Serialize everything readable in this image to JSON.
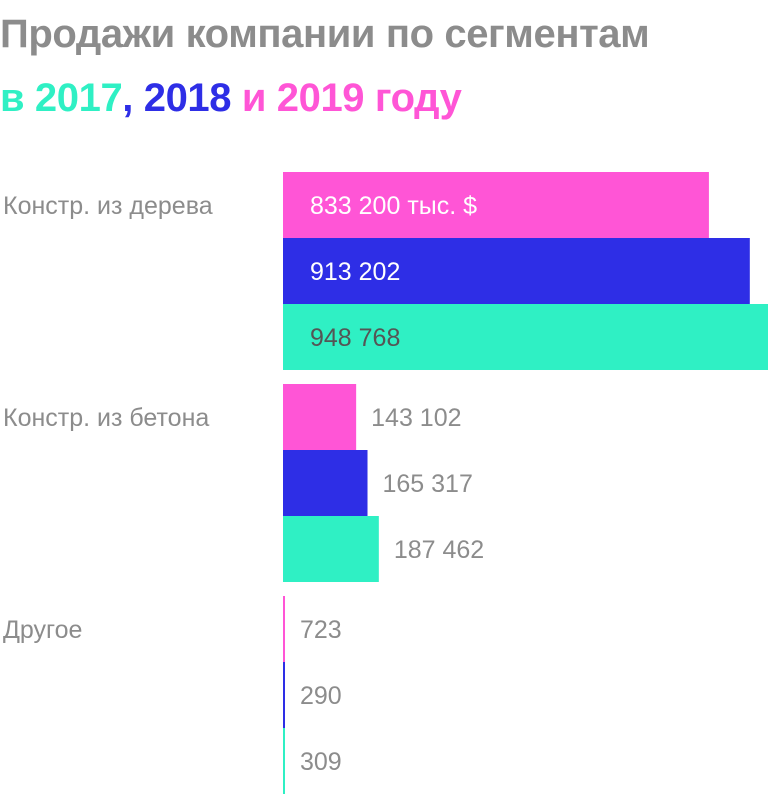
{
  "title": {
    "line1": "Продажи компании по сегментам",
    "prefix": "в ",
    "year_2017": "2017",
    "sep_1": ", ",
    "year_2018": "2018",
    "sep_2": " и ",
    "year_2019": "2019",
    "suffix": " году"
  },
  "colors": {
    "title_gray": "#8c8c8c",
    "year_2017": "#2ff0c4",
    "year_2018": "#2e2ee6",
    "year_2019": "#ff55d6",
    "label_gray": "#8c8c8c",
    "inside_label_light": "#ffffff",
    "inside_label_dark": "#555555"
  },
  "chart_data": {
    "type": "bar",
    "orientation": "horizontal",
    "unit": "тыс. $",
    "categories": [
      "Констр. из дерева",
      "Констр. из бетона",
      "Другое"
    ],
    "series": [
      {
        "name": "2019",
        "color": "#ff55d6",
        "values": [
          833200,
          143102,
          723
        ],
        "labels": [
          "833 200 тыс. $",
          "143 102",
          "723"
        ]
      },
      {
        "name": "2018",
        "color": "#2e2ee6",
        "values": [
          913202,
          165317,
          290
        ],
        "labels": [
          "913 202",
          "165 317",
          "290"
        ]
      },
      {
        "name": "2017",
        "color": "#2ff0c4",
        "values": [
          948768,
          187462,
          309
        ],
        "labels": [
          "948 768",
          "187 462",
          "309"
        ]
      }
    ],
    "xlim": [
      0,
      948768
    ],
    "grid": false,
    "legend": "none"
  }
}
